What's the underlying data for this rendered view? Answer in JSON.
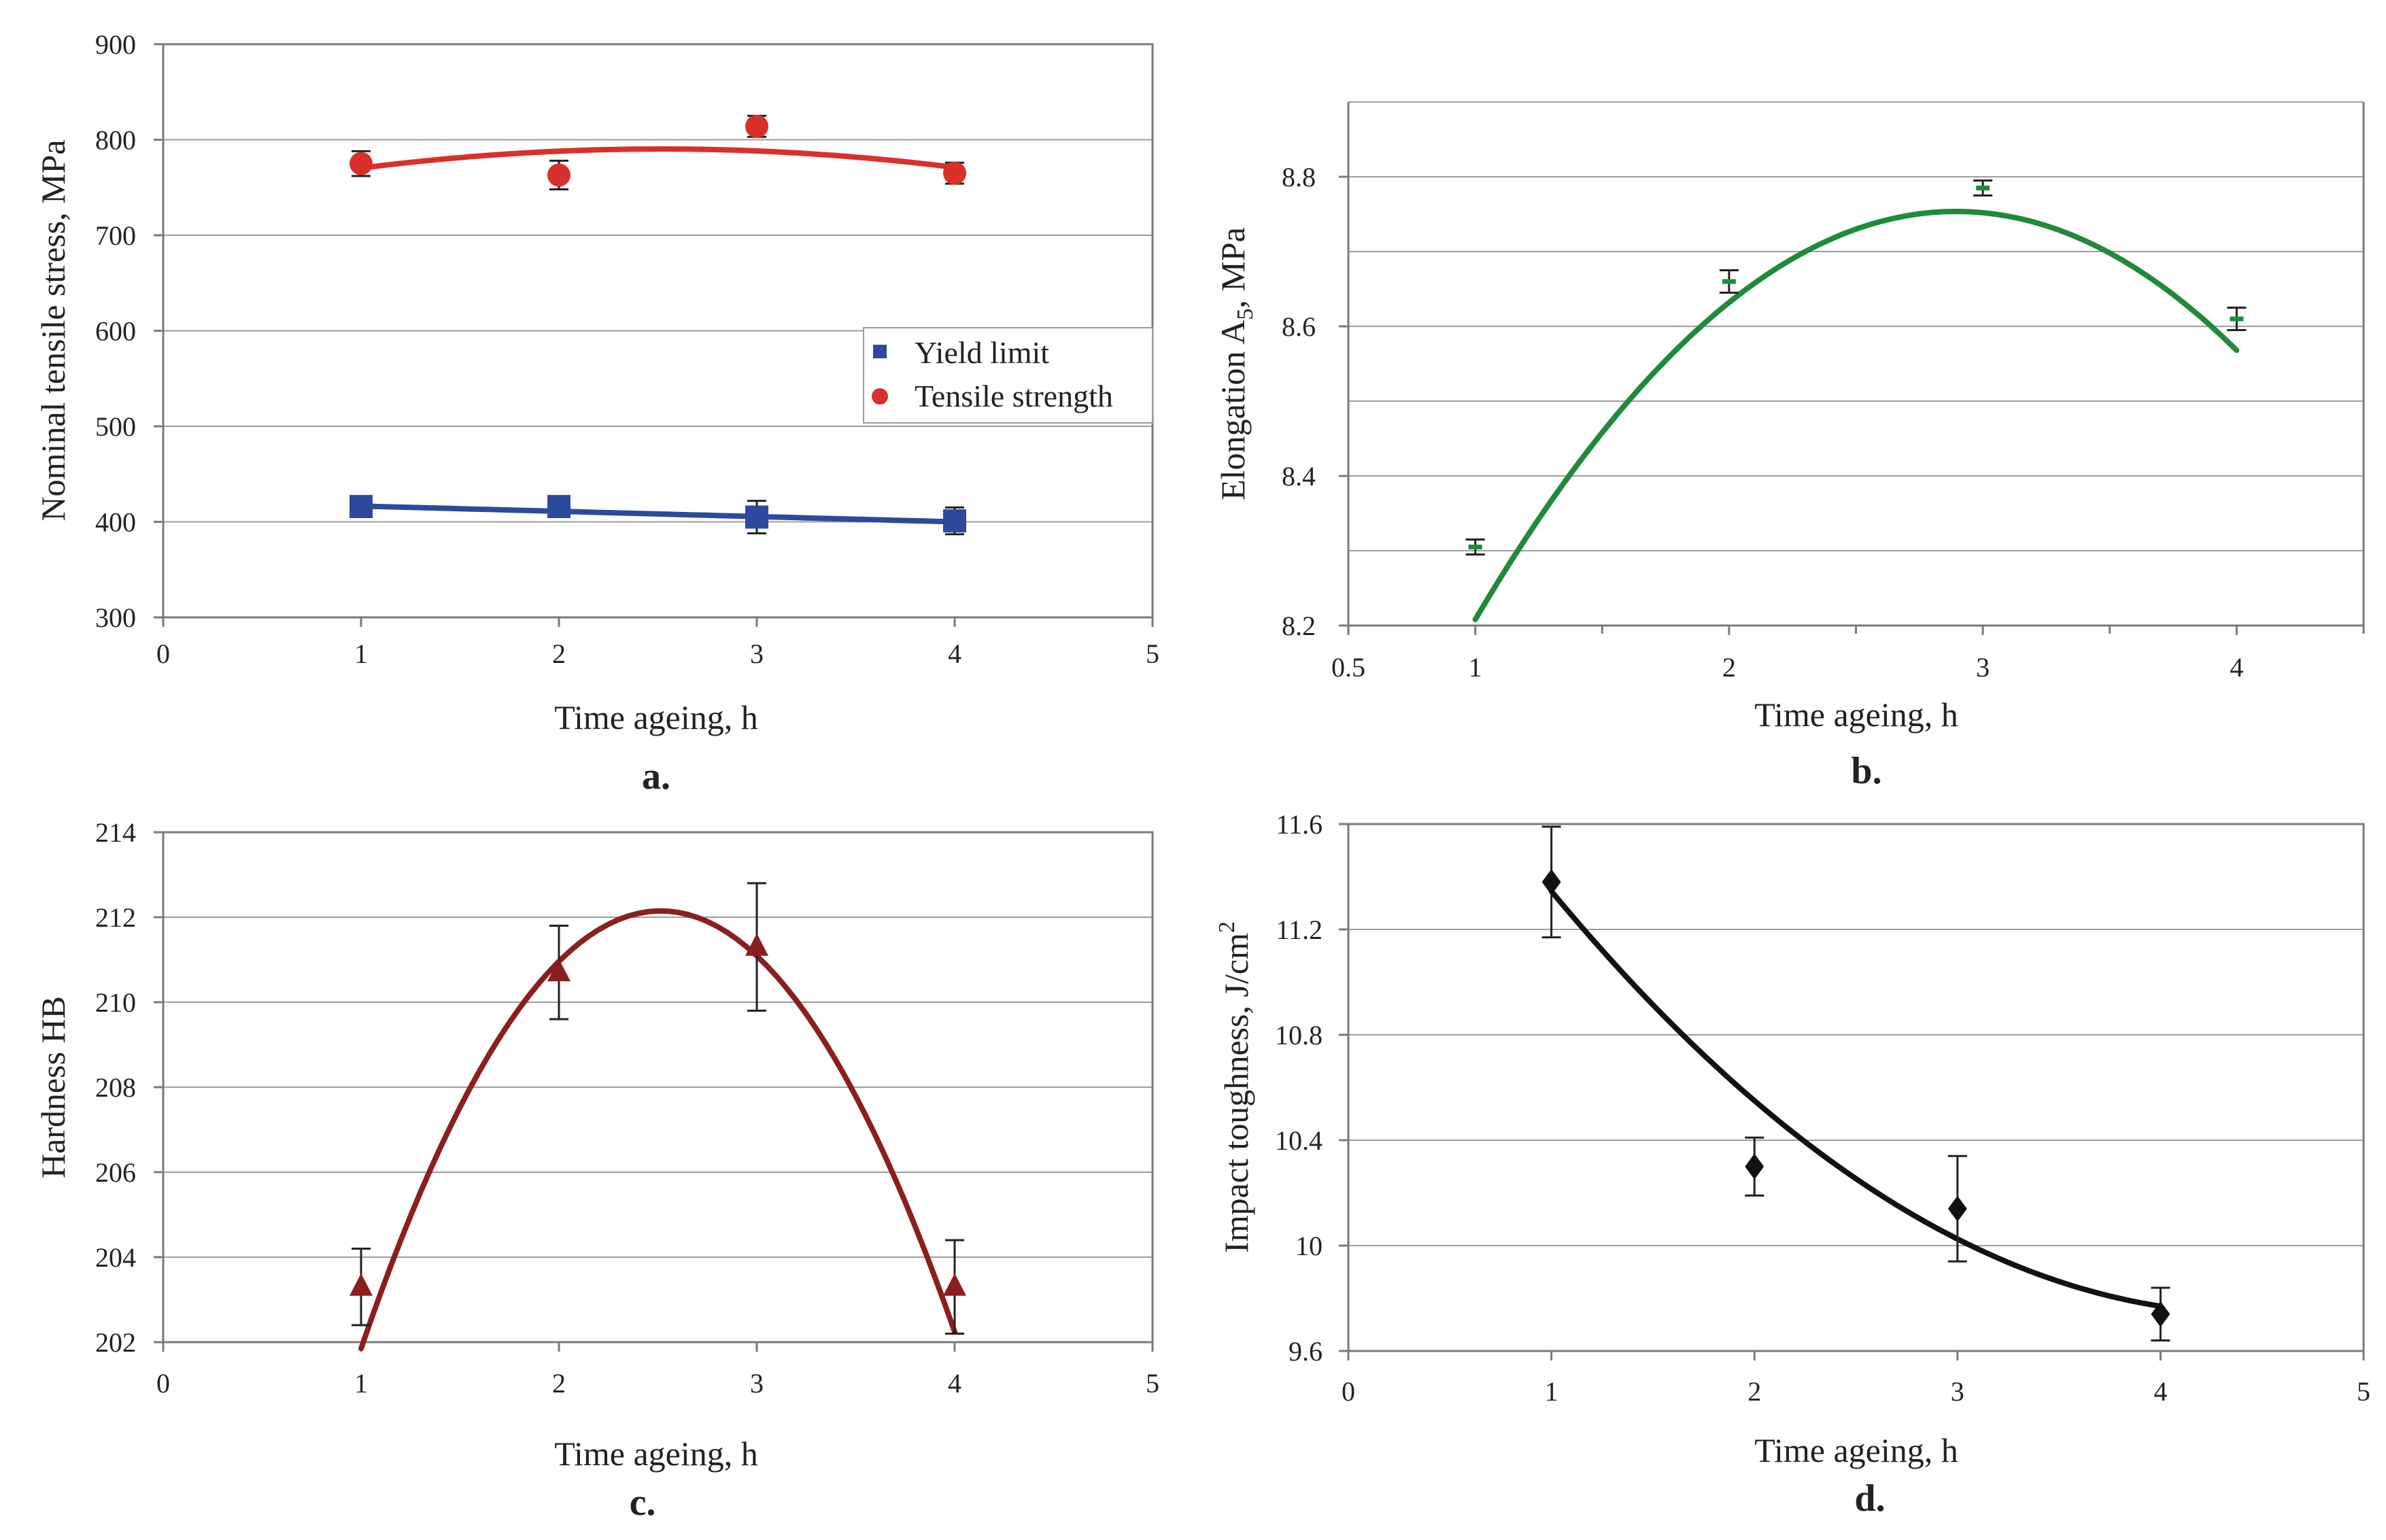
{
  "chart_data": [
    {
      "id": "a",
      "type": "scatter",
      "panel_label": "a.",
      "xlabel": "Time ageing, h",
      "ylabel": "Nominal tensile stress, MPa",
      "xlim": [
        0,
        5
      ],
      "ylim": [
        300,
        900
      ],
      "xticks": [
        0,
        1,
        2,
        3,
        4,
        5
      ],
      "yticks": [
        300,
        400,
        500,
        600,
        700,
        800,
        900
      ],
      "grid": "horizontal",
      "legend": {
        "position": "right",
        "entries": [
          "Yield limit",
          "Tensile strength"
        ]
      },
      "series": [
        {
          "name": "Yield limit",
          "marker": "square",
          "color": "#2b4a9c",
          "x": [
            1,
            2,
            3,
            4
          ],
          "y": [
            416,
            416,
            405,
            401
          ],
          "err": [
            10,
            10,
            17,
            14
          ],
          "fit": "linear",
          "fit_coeffs": [
            422,
            -5.5
          ]
        },
        {
          "name": "Tensile strength",
          "marker": "circle",
          "color": "#d9302b",
          "x": [
            1,
            2,
            3,
            4
          ],
          "y": [
            775,
            763,
            814,
            765
          ],
          "err": [
            13,
            15,
            11,
            11
          ],
          "fit": "quadratic",
          "fit_coeffs": [
            735,
            44,
            -8.75
          ]
        }
      ]
    },
    {
      "id": "b",
      "type": "scatter",
      "panel_label": "b.",
      "xlabel": "Time ageing, h",
      "ylabel_main": "Elongation A",
      "ylabel_sub": "5",
      "ylabel_tail": ", MPa",
      "xlim": [
        0.5,
        4.5
      ],
      "ylim": [
        8.2,
        8.9
      ],
      "xticks": [
        0.5,
        1,
        2,
        3,
        4
      ],
      "xtick_labels": [
        "0.5",
        "1",
        "2",
        "3",
        "4"
      ],
      "yticks": [
        8.2,
        8.4,
        8.6,
        8.8
      ],
      "gridlines": [
        8.3,
        8.4,
        8.5,
        8.6,
        8.7,
        8.8,
        8.9
      ],
      "minor_xticks": [
        1.5,
        2.5,
        3.5,
        4.5
      ],
      "grid": "horizontal",
      "series": [
        {
          "name": "Elongation",
          "marker": "dash",
          "color": "#1f8a3b",
          "x": [
            1,
            2,
            3,
            4
          ],
          "y": [
            8.305,
            8.66,
            8.785,
            8.61
          ],
          "err": [
            0.01,
            0.015,
            0.01,
            0.015
          ],
          "fit": "quadratic",
          "fit_coeffs": [
            7.48,
            0.88,
            -0.152
          ]
        }
      ]
    },
    {
      "id": "c",
      "type": "scatter",
      "panel_label": "c.",
      "xlabel": "Time ageing, h",
      "ylabel": "Hardness HB",
      "xlim": [
        0,
        5
      ],
      "ylim": [
        202,
        214
      ],
      "xticks": [
        0,
        1,
        2,
        3,
        4,
        5
      ],
      "yticks": [
        202,
        204,
        206,
        208,
        210,
        212,
        214
      ],
      "grid": "horizontal",
      "series": [
        {
          "name": "Hardness",
          "marker": "triangle",
          "color": "#8b1e1e",
          "x": [
            1,
            2,
            3,
            4
          ],
          "y": [
            203.3,
            210.7,
            211.3,
            203.3
          ],
          "err": [
            0.9,
            1.1,
            1.5,
            1.1
          ],
          "fit": "quadratic",
          "fit_coeffs": [
            183.76,
            22.58,
            -4.49
          ]
        }
      ]
    },
    {
      "id": "d",
      "type": "scatter",
      "panel_label": "d.",
      "xlabel": "Time ageing, h",
      "ylabel_main": "Impact toughness, J/cm",
      "ylabel_sup": "2",
      "xlim": [
        0,
        5
      ],
      "ylim": [
        9.6,
        11.6
      ],
      "xticks": [
        0,
        1,
        2,
        3,
        4,
        5
      ],
      "yticks": [
        9.6,
        10,
        10.4,
        10.8,
        11.2,
        11.6
      ],
      "ytick_labels": [
        "9.6",
        "10",
        "10.4",
        "10.8",
        "11.2",
        "11.6"
      ],
      "grid": "horizontal",
      "series": [
        {
          "name": "Impact toughness",
          "marker": "diamond",
          "color": "#111111",
          "x": [
            1,
            2,
            3,
            4
          ],
          "y": [
            11.38,
            10.3,
            10.14,
            9.74
          ],
          "err": [
            0.21,
            0.11,
            0.2,
            0.1
          ],
          "fit": "quadratic",
          "fit_coeffs": [
            12.41,
            -1.2,
            0.135
          ]
        }
      ]
    }
  ]
}
